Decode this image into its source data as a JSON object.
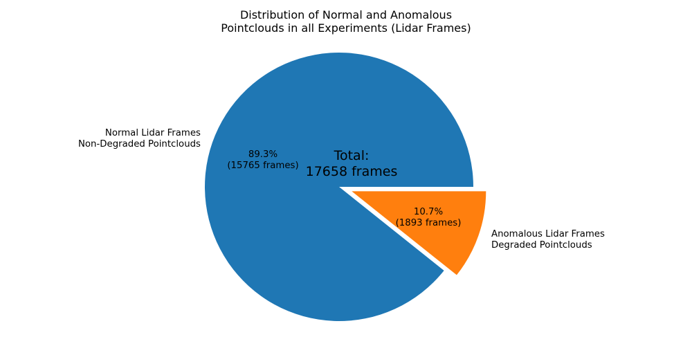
{
  "chart_data": {
    "type": "pie",
    "title": "Distribution of Normal and Anomalous\nPointclouds in all Experiments (Lidar Frames)",
    "center_annotation": "Total:\n17658 frames",
    "total_value": 17658,
    "total_unit": "frames",
    "start_angle_deg": 0,
    "direction": "counterclockwise",
    "legend": "none",
    "background": "#ffffff",
    "text_color": "#000000",
    "slices": [
      {
        "id": "normal",
        "label": "Normal Lidar Frames\nNon-Degraded Pointclouds",
        "value": 15765,
        "pct": 89.3,
        "autopct": "89.3%\n(15765 frames)",
        "color": "#1f77b4",
        "explode": 0
      },
      {
        "id": "anomalous",
        "label": "Anomalous Lidar Frames\nDegraded Pointclouds",
        "value": 1893,
        "pct": 10.7,
        "autopct": "10.7%\n(1893 frames)",
        "color": "#ff7f0e",
        "explode": 0.1
      }
    ]
  }
}
